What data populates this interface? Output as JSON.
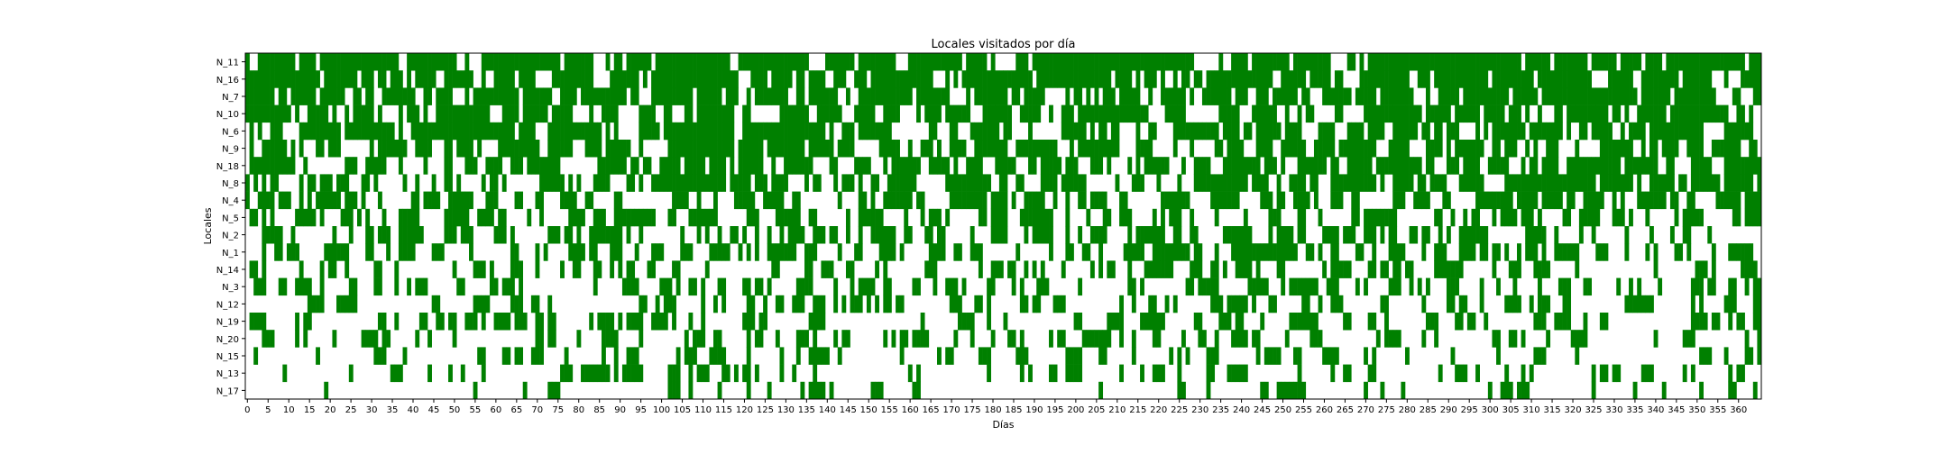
{
  "chart_data": {
    "type": "heatmap",
    "title": "Locales visitados por día",
    "xlabel": "Días",
    "ylabel": "Locales",
    "y_categories": [
      "N_11",
      "N_16",
      "N_7",
      "N_10",
      "N_6",
      "N_9",
      "N_18",
      "N_8",
      "N_4",
      "N_5",
      "N_2",
      "N_1",
      "N_14",
      "N_3",
      "N_12",
      "N_19",
      "N_20",
      "N_15",
      "N_13",
      "N_17"
    ],
    "x_range": [
      0,
      365
    ],
    "x_ticks": [
      0,
      5,
      10,
      15,
      20,
      25,
      30,
      35,
      40,
      45,
      50,
      55,
      60,
      65,
      70,
      75,
      80,
      85,
      90,
      95,
      100,
      105,
      110,
      115,
      120,
      125,
      130,
      135,
      140,
      145,
      150,
      155,
      160,
      165,
      170,
      175,
      180,
      185,
      190,
      195,
      200,
      205,
      210,
      215,
      220,
      225,
      230,
      235,
      240,
      245,
      250,
      255,
      260,
      265,
      270,
      275,
      280,
      285,
      290,
      295,
      300,
      305,
      310,
      315,
      320,
      325,
      330,
      335,
      340,
      345,
      350,
      355,
      360
    ],
    "visited_color": "#008000",
    "not_visited_color": "#ffffff",
    "visit_probability_by_locale": [
      0.72,
      0.66,
      0.63,
      0.62,
      0.58,
      0.55,
      0.52,
      0.5,
      0.47,
      0.45,
      0.44,
      0.42,
      0.4,
      0.38,
      0.36,
      0.34,
      0.32,
      0.3,
      0.28,
      0.26
    ],
    "grid": false,
    "legend": "none"
  }
}
